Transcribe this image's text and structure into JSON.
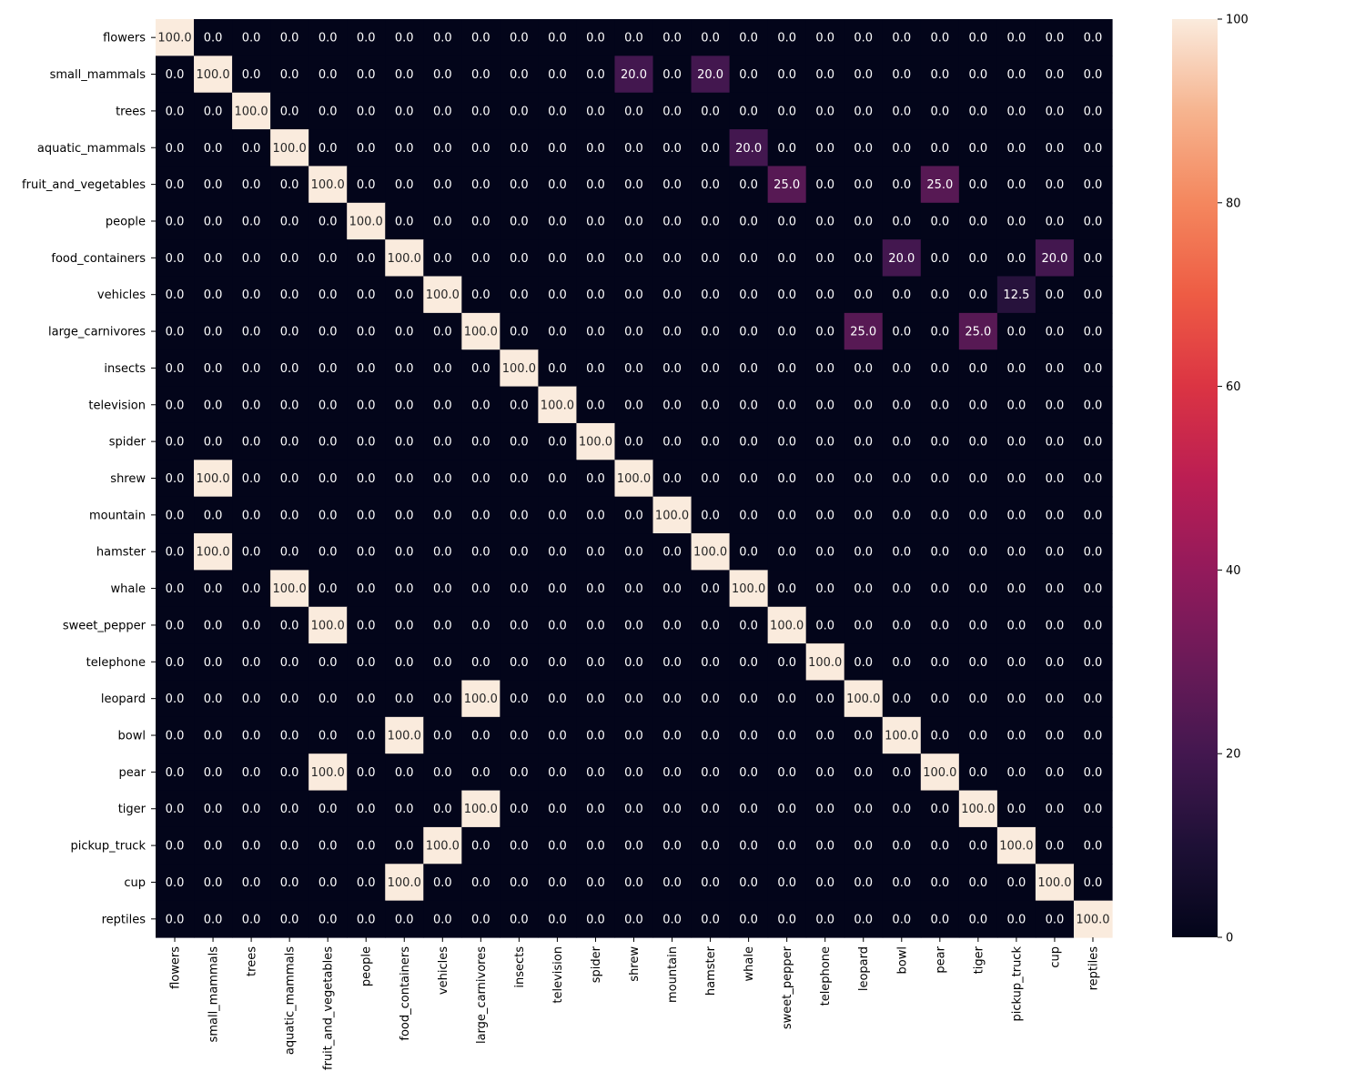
{
  "chart_data": {
    "type": "heatmap",
    "rows": [
      "flowers",
      "small_mammals",
      "trees",
      "aquatic_mammals",
      "fruit_and_vegetables",
      "people",
      "food_containers",
      "vehicles",
      "large_carnivores",
      "insects",
      "television",
      "spider",
      "shrew",
      "mountain",
      "hamster",
      "whale",
      "sweet_pepper",
      "telephone",
      "leopard",
      "bowl",
      "pear",
      "tiger",
      "pickup_truck",
      "cup",
      "reptiles"
    ],
    "columns": [
      "flowers",
      "small_mammals",
      "trees",
      "aquatic_mammals",
      "fruit_and_vegetables",
      "people",
      "food_containers",
      "vehicles",
      "large_carnivores",
      "insects",
      "television",
      "spider",
      "shrew",
      "mountain",
      "hamster",
      "whale",
      "sweet_pepper",
      "telephone",
      "leopard",
      "bowl",
      "pear",
      "tiger",
      "pickup_truck",
      "cup",
      "reptiles"
    ],
    "values": [
      [
        100,
        0,
        0,
        0,
        0,
        0,
        0,
        0,
        0,
        0,
        0,
        0,
        0,
        0,
        0,
        0,
        0,
        0,
        0,
        0,
        0,
        0,
        0,
        0,
        0
      ],
      [
        0,
        100,
        0,
        0,
        0,
        0,
        0,
        0,
        0,
        0,
        0,
        0,
        20,
        0,
        20,
        0,
        0,
        0,
        0,
        0,
        0,
        0,
        0,
        0,
        0
      ],
      [
        0,
        0,
        100,
        0,
        0,
        0,
        0,
        0,
        0,
        0,
        0,
        0,
        0,
        0,
        0,
        0,
        0,
        0,
        0,
        0,
        0,
        0,
        0,
        0,
        0
      ],
      [
        0,
        0,
        0,
        100,
        0,
        0,
        0,
        0,
        0,
        0,
        0,
        0,
        0,
        0,
        0,
        20,
        0,
        0,
        0,
        0,
        0,
        0,
        0,
        0,
        0
      ],
      [
        0,
        0,
        0,
        0,
        100,
        0,
        0,
        0,
        0,
        0,
        0,
        0,
        0,
        0,
        0,
        0,
        25,
        0,
        0,
        0,
        25,
        0,
        0,
        0,
        0
      ],
      [
        0,
        0,
        0,
        0,
        0,
        100,
        0,
        0,
        0,
        0,
        0,
        0,
        0,
        0,
        0,
        0,
        0,
        0,
        0,
        0,
        0,
        0,
        0,
        0,
        0
      ],
      [
        0,
        0,
        0,
        0,
        0,
        0,
        100,
        0,
        0,
        0,
        0,
        0,
        0,
        0,
        0,
        0,
        0,
        0,
        0,
        20,
        0,
        0,
        0,
        20,
        0
      ],
      [
        0,
        0,
        0,
        0,
        0,
        0,
        0,
        100,
        0,
        0,
        0,
        0,
        0,
        0,
        0,
        0,
        0,
        0,
        0,
        0,
        0,
        0,
        12.5,
        0,
        0
      ],
      [
        0,
        0,
        0,
        0,
        0,
        0,
        0,
        0,
        100,
        0,
        0,
        0,
        0,
        0,
        0,
        0,
        0,
        0,
        25,
        0,
        0,
        25,
        0,
        0,
        0
      ],
      [
        0,
        0,
        0,
        0,
        0,
        0,
        0,
        0,
        0,
        100,
        0,
        0,
        0,
        0,
        0,
        0,
        0,
        0,
        0,
        0,
        0,
        0,
        0,
        0,
        0
      ],
      [
        0,
        0,
        0,
        0,
        0,
        0,
        0,
        0,
        0,
        0,
        100,
        0,
        0,
        0,
        0,
        0,
        0,
        0,
        0,
        0,
        0,
        0,
        0,
        0,
        0
      ],
      [
        0,
        0,
        0,
        0,
        0,
        0,
        0,
        0,
        0,
        0,
        0,
        100,
        0,
        0,
        0,
        0,
        0,
        0,
        0,
        0,
        0,
        0,
        0,
        0,
        0
      ],
      [
        0,
        100,
        0,
        0,
        0,
        0,
        0,
        0,
        0,
        0,
        0,
        0,
        100,
        0,
        0,
        0,
        0,
        0,
        0,
        0,
        0,
        0,
        0,
        0,
        0
      ],
      [
        0,
        0,
        0,
        0,
        0,
        0,
        0,
        0,
        0,
        0,
        0,
        0,
        0,
        100,
        0,
        0,
        0,
        0,
        0,
        0,
        0,
        0,
        0,
        0,
        0
      ],
      [
        0,
        100,
        0,
        0,
        0,
        0,
        0,
        0,
        0,
        0,
        0,
        0,
        0,
        0,
        100,
        0,
        0,
        0,
        0,
        0,
        0,
        0,
        0,
        0,
        0
      ],
      [
        0,
        0,
        0,
        100,
        0,
        0,
        0,
        0,
        0,
        0,
        0,
        0,
        0,
        0,
        0,
        100,
        0,
        0,
        0,
        0,
        0,
        0,
        0,
        0,
        0
      ],
      [
        0,
        0,
        0,
        0,
        100,
        0,
        0,
        0,
        0,
        0,
        0,
        0,
        0,
        0,
        0,
        0,
        100,
        0,
        0,
        0,
        0,
        0,
        0,
        0,
        0
      ],
      [
        0,
        0,
        0,
        0,
        0,
        0,
        0,
        0,
        0,
        0,
        0,
        0,
        0,
        0,
        0,
        0,
        0,
        100,
        0,
        0,
        0,
        0,
        0,
        0,
        0
      ],
      [
        0,
        0,
        0,
        0,
        0,
        0,
        0,
        0,
        100,
        0,
        0,
        0,
        0,
        0,
        0,
        0,
        0,
        0,
        100,
        0,
        0,
        0,
        0,
        0,
        0
      ],
      [
        0,
        0,
        0,
        0,
        0,
        0,
        100,
        0,
        0,
        0,
        0,
        0,
        0,
        0,
        0,
        0,
        0,
        0,
        0,
        100,
        0,
        0,
        0,
        0,
        0
      ],
      [
        0,
        0,
        0,
        0,
        100,
        0,
        0,
        0,
        0,
        0,
        0,
        0,
        0,
        0,
        0,
        0,
        0,
        0,
        0,
        0,
        100,
        0,
        0,
        0,
        0
      ],
      [
        0,
        0,
        0,
        0,
        0,
        0,
        0,
        0,
        100,
        0,
        0,
        0,
        0,
        0,
        0,
        0,
        0,
        0,
        0,
        0,
        0,
        100,
        0,
        0,
        0
      ],
      [
        0,
        0,
        0,
        0,
        0,
        0,
        0,
        100,
        0,
        0,
        0,
        0,
        0,
        0,
        0,
        0,
        0,
        0,
        0,
        0,
        0,
        0,
        100,
        0,
        0
      ],
      [
        0,
        0,
        0,
        0,
        0,
        0,
        100,
        0,
        0,
        0,
        0,
        0,
        0,
        0,
        0,
        0,
        0,
        0,
        0,
        0,
        0,
        0,
        0,
        100,
        0
      ],
      [
        0,
        0,
        0,
        0,
        0,
        0,
        0,
        0,
        0,
        0,
        0,
        0,
        0,
        0,
        0,
        0,
        0,
        0,
        0,
        0,
        0,
        0,
        0,
        0,
        100
      ]
    ],
    "value_format": "one decimal place",
    "colorbar": {
      "range": [
        0,
        100
      ],
      "ticks": [
        0,
        20,
        40,
        60,
        80,
        100
      ],
      "colormap": "rocket"
    },
    "title": "",
    "xlabel": "",
    "ylabel": ""
  }
}
